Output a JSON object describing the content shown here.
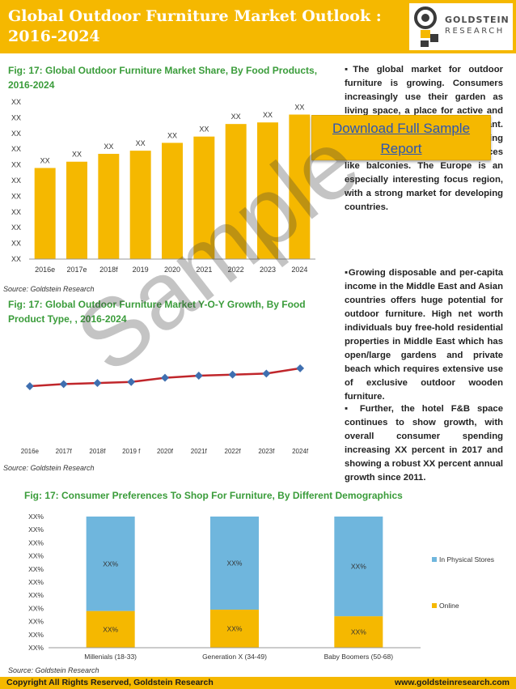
{
  "header": {
    "title_line1": "Global Outdoor Furniture Market Outlook :",
    "title_line2": "2016-2024"
  },
  "logo": {
    "name": "GOLDSTEIN",
    "sub": "RESEARCH"
  },
  "fig1": {
    "title_line1": "Fig: 17: Global Outdoor Furniture Market Share, By Food Products,",
    "title_line2": "2016-2024",
    "source": "Source: Goldstein Research"
  },
  "fig2": {
    "title_line1": "Fig: 17: Global Outdoor Furniture Market Y-O-Y Growth, By Food",
    "title_line2": "Product Type, , 2016-2024",
    "source": "Source: Goldstein Research"
  },
  "fig3": {
    "title": "Fig: 17:  Consumer Preferences To Shop For Furniture, By Different Demographics",
    "source": "Source: Goldstein Research"
  },
  "chart_data": [
    {
      "type": "bar",
      "categories": [
        "2016e",
        "2017e",
        "2018f",
        "2019",
        "2020",
        "2021",
        "2022",
        "2023",
        "2024"
      ],
      "values": [
        58,
        62,
        67,
        69,
        74,
        78,
        86,
        87,
        92
      ],
      "data_labels": [
        "XX",
        "XX",
        "XX",
        "XX",
        "XX",
        "XX",
        "XX",
        "XX",
        "XX"
      ],
      "y_tick_labels": [
        "XX",
        "XX",
        "XX",
        "XX",
        "XX",
        "XX",
        "XX",
        "XX",
        "XX",
        "XX",
        "XX"
      ],
      "ylim": [
        0,
        100
      ],
      "color": "#f5b800",
      "grid": false
    },
    {
      "type": "line",
      "categories": [
        "2016e",
        "2017f",
        "2018f",
        "2019 f",
        "2020f",
        "2021f",
        "2022f",
        "2023f",
        "2024f"
      ],
      "values": [
        5.0,
        5.2,
        5.3,
        5.4,
        5.8,
        6.0,
        6.1,
        6.2,
        6.7
      ],
      "ylim": [
        0,
        10
      ],
      "line_color": "#c0262b",
      "marker_color": "#3f6fb0",
      "grid": false
    },
    {
      "type": "bar",
      "stacked": true,
      "categories": [
        "Millenials (18-33)",
        "Generation X (34-49)",
        "Baby Boomers (50-68)"
      ],
      "series": [
        {
          "name": "Online",
          "values": [
            28,
            29,
            24
          ],
          "label": "XX%",
          "color": "#f5b800"
        },
        {
          "name": "In Physical Stores",
          "values": [
            72,
            71,
            76
          ],
          "label": "XX%",
          "color": "#6fb6dd"
        }
      ],
      "y_tick_labels": [
        "XX%",
        "XX%",
        "XX%",
        "XX%",
        "XX%",
        "XX%",
        "XX%",
        "XX%",
        "XX%",
        "XX%",
        "XX%"
      ],
      "ylim": [
        0,
        100
      ],
      "legend": "right",
      "grid": false
    }
  ],
  "paragraphs": [
    "▪The global market for outdoor furniture is growing. Consumers increasingly use their garden as living space, a place for active and ... becoming increasingly important. Another trend is developing furniture for relatively small spaces like balconies. The Europe is an especially interesting focus region, with a strong market for developing countries.",
    "▪Growing disposable and per-capita income in the Middle East and Asian countries offers huge potential for outdoor furniture. High net worth individuals buy free-hold residential properties in Middle East which has open/large gardens and private beach which requires extensive use of exclusive outdoor wooden furniture.",
    "▪ Further, the hotel F&B space continues to show growth, with overall consumer spending increasing XX percent in 2017 and showing a robust XX percent annual growth since 2011."
  ],
  "download_button": {
    "label": "Download Full Sample Report"
  },
  "watermark": "Sample",
  "footer": {
    "copyright": "Copyright     All Rights Reserved, Goldstein Research",
    "website": "www.goldsteinresearch.com"
  },
  "colors": {
    "brand": "#f5b800",
    "fig_title": "#3a9c3a",
    "link": "#2a55b5"
  }
}
